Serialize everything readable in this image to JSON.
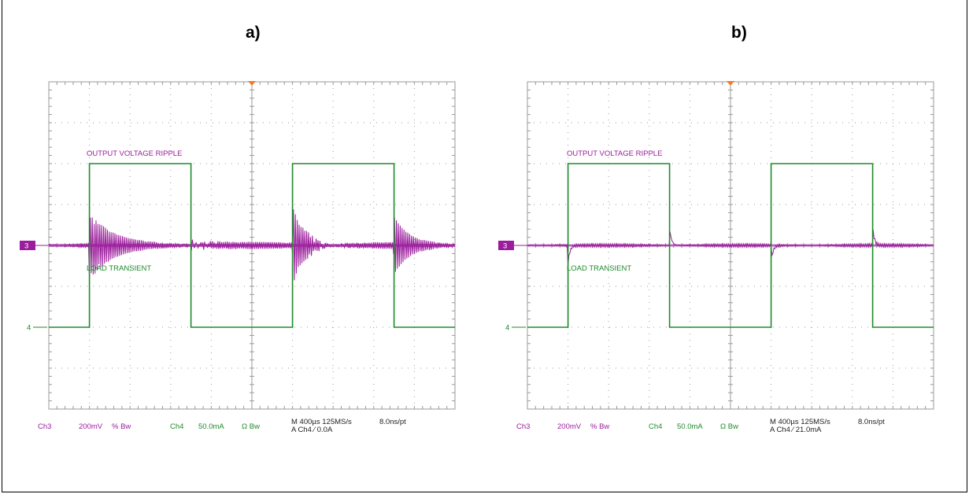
{
  "figure": {
    "panels": [
      "a)",
      "b)"
    ]
  },
  "colors": {
    "ch3": "#9b1c9c",
    "ch4": "#1f8a2b",
    "grid": "#9a9a9a",
    "trigger": "#f07b2a",
    "frame": "#000000"
  },
  "chart_data": [
    {
      "type": "line",
      "panel": "a)",
      "x_unit": "time (µs)",
      "x_range": [
        0,
        4000
      ],
      "x_divisions": 10,
      "y_divisions": 8,
      "annotations": [
        "OUTPUT VOLTAGE RIPPLE",
        "LOAD TRANSIENT"
      ],
      "channel_markers": [
        "3",
        "4"
      ],
      "series": [
        {
          "channel": "Ch3",
          "name": "OUTPUT VOLTAGE RIPPLE",
          "scale": "200mV",
          "baseline_div": 4.0,
          "ripple_div": 0.08,
          "events": [
            {
              "t": 400,
              "peak_div": 1.0,
              "decay": "slow"
            },
            {
              "t": 1400,
              "peak_div": 0.65,
              "decay": "medium"
            },
            {
              "t": 2400,
              "peak_div": 1.0,
              "decay": "slow"
            },
            {
              "t": 3400,
              "peak_div": 0.65,
              "decay": "medium"
            }
          ]
        },
        {
          "channel": "Ch4",
          "name": "LOAD TRANSIENT",
          "scale": "50.0mA",
          "low_div": 6.0,
          "high_div": 2.0,
          "x": [
            0,
            400,
            400,
            1400,
            1400,
            2400,
            2400,
            3400,
            3400,
            4000
          ],
          "y_mA": [
            0,
            0,
            200,
            200,
            0,
            0,
            200,
            200,
            0,
            0
          ]
        }
      ],
      "readout": {
        "ch3": "Ch3",
        "ch3_scale": "200mV",
        "ch3_flags": "% Bw",
        "ch4": "Ch4",
        "ch4_scale": "50.0mA",
        "ch4_flags": "Ω Bw",
        "timebase": "M 400µs 125MS/s",
        "resolution": "8.0ns/pt",
        "trigger": "A  Ch4  ⁄  0.0A"
      }
    },
    {
      "type": "line",
      "panel": "b)",
      "x_unit": "time (µs)",
      "x_range": [
        0,
        4000
      ],
      "x_divisions": 10,
      "y_divisions": 8,
      "annotations": [
        "OUTPUT VOLTAGE RIPPLE",
        "LOAD TRANSIENT"
      ],
      "channel_markers": [
        "3",
        "4"
      ],
      "series": [
        {
          "channel": "Ch3",
          "name": "OUTPUT VOLTAGE RIPPLE",
          "scale": "200mV",
          "baseline_div": 4.0,
          "ripple_div": 0.04,
          "events": [
            {
              "t": 400,
              "peak_div": -0.45,
              "decay": "fast"
            },
            {
              "t": 1400,
              "peak_div": 0.45,
              "decay": "fast"
            },
            {
              "t": 2400,
              "peak_div": -0.45,
              "decay": "fast"
            },
            {
              "t": 3400,
              "peak_div": 0.45,
              "decay": "fast"
            }
          ]
        },
        {
          "channel": "Ch4",
          "name": "LOAD TRANSIENT",
          "scale": "50.0mA",
          "low_div": 6.0,
          "high_div": 2.0,
          "x": [
            0,
            400,
            400,
            1400,
            1400,
            2400,
            2400,
            3400,
            3400,
            4000
          ],
          "y_mA": [
            21,
            21,
            221,
            221,
            21,
            21,
            221,
            221,
            21,
            21
          ]
        }
      ],
      "readout": {
        "ch3": "Ch3",
        "ch3_scale": "200mV",
        "ch3_flags": "% Bw",
        "ch4": "Ch4",
        "ch4_scale": "50.0mA",
        "ch4_flags": "Ω Bw",
        "timebase": "M 400µs 125MS/s",
        "resolution": "8.0ns/pt",
        "trigger": "A  Ch4  ⁄  21.0mA"
      }
    }
  ]
}
